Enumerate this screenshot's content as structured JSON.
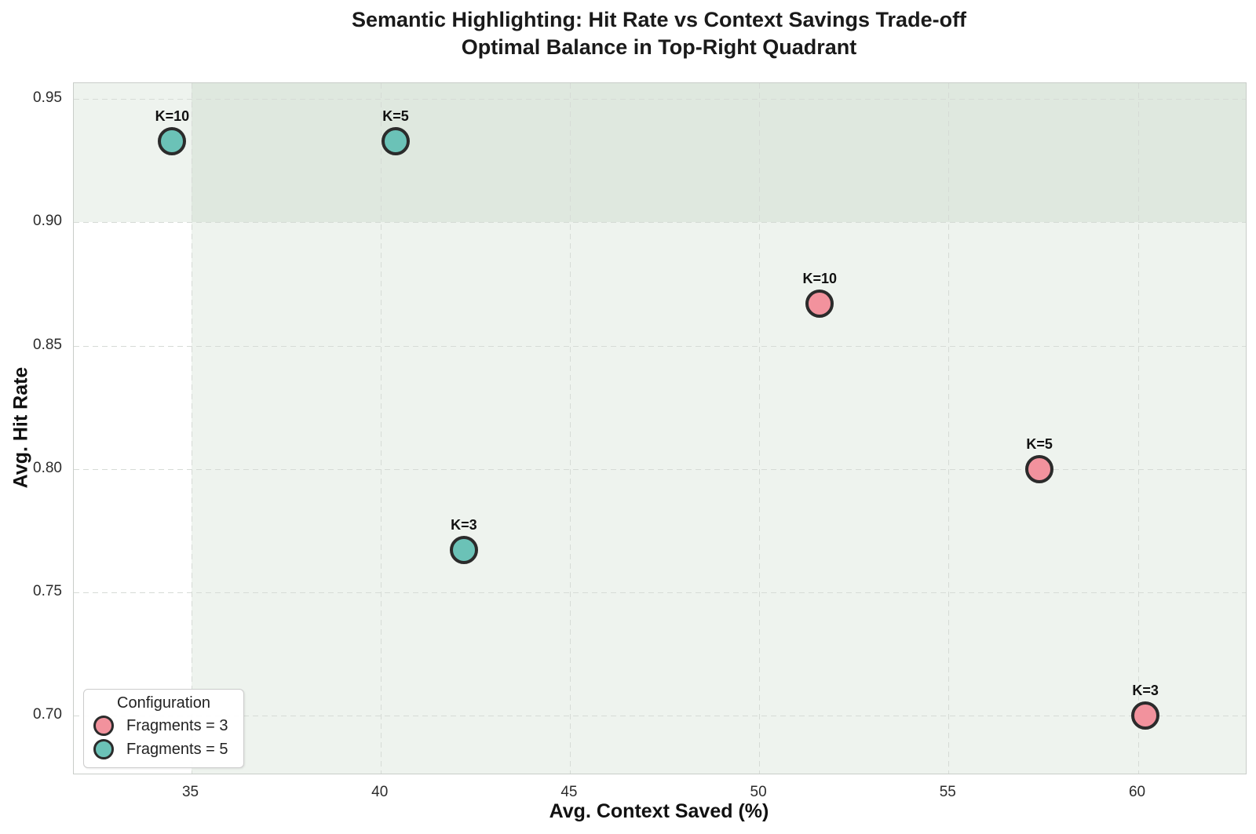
{
  "chart_data": {
    "type": "scatter",
    "title": "Semantic Highlighting: Hit Rate vs Context Savings Trade-off",
    "subtitle": "Optimal Balance in Top-Right Quadrant",
    "xlabel": "Avg. Context Saved (%)",
    "ylabel": "Avg. Hit Rate",
    "xlim": [
      31.9,
      62.85
    ],
    "ylim": [
      0.6765,
      0.9564
    ],
    "xticks": [
      {
        "value": 35,
        "label": "35"
      },
      {
        "value": 40,
        "label": "40"
      },
      {
        "value": 45,
        "label": "45"
      },
      {
        "value": 50,
        "label": "50"
      },
      {
        "value": 55,
        "label": "55"
      },
      {
        "value": 60,
        "label": "60"
      }
    ],
    "yticks": [
      {
        "value": 0.7,
        "label": "0.70"
      },
      {
        "value": 0.75,
        "label": "0.75"
      },
      {
        "value": 0.8,
        "label": "0.80"
      },
      {
        "value": 0.85,
        "label": "0.85"
      },
      {
        "value": 0.9,
        "label": "0.90"
      },
      {
        "value": 0.95,
        "label": "0.95"
      }
    ],
    "grid": true,
    "legend": {
      "title": "Configuration",
      "position": "lower left",
      "entries": [
        "Fragments = 3",
        "Fragments = 5"
      ]
    },
    "series": [
      {
        "name": "Fragments = 3",
        "color": "#F2929D",
        "points": [
          {
            "x": 51.6,
            "y": 0.867,
            "label": "K=10"
          },
          {
            "x": 57.4,
            "y": 0.8,
            "label": "K=5"
          },
          {
            "x": 60.2,
            "y": 0.7,
            "label": "K=3"
          }
        ]
      },
      {
        "name": "Fragments = 5",
        "color": "#6BC2B7",
        "points": [
          {
            "x": 34.5,
            "y": 0.933,
            "label": "K=10"
          },
          {
            "x": 40.4,
            "y": 0.933,
            "label": "K=5"
          },
          {
            "x": 42.2,
            "y": 0.767,
            "label": "K=3"
          }
        ]
      }
    ],
    "highlight_regions": {
      "x_threshold": 35,
      "y_threshold": 0.9,
      "tint": "rgba(125,165,125,0.13)"
    },
    "marker_edge_color": "#2b2b2b",
    "grid_color": "#d6dbd6"
  }
}
